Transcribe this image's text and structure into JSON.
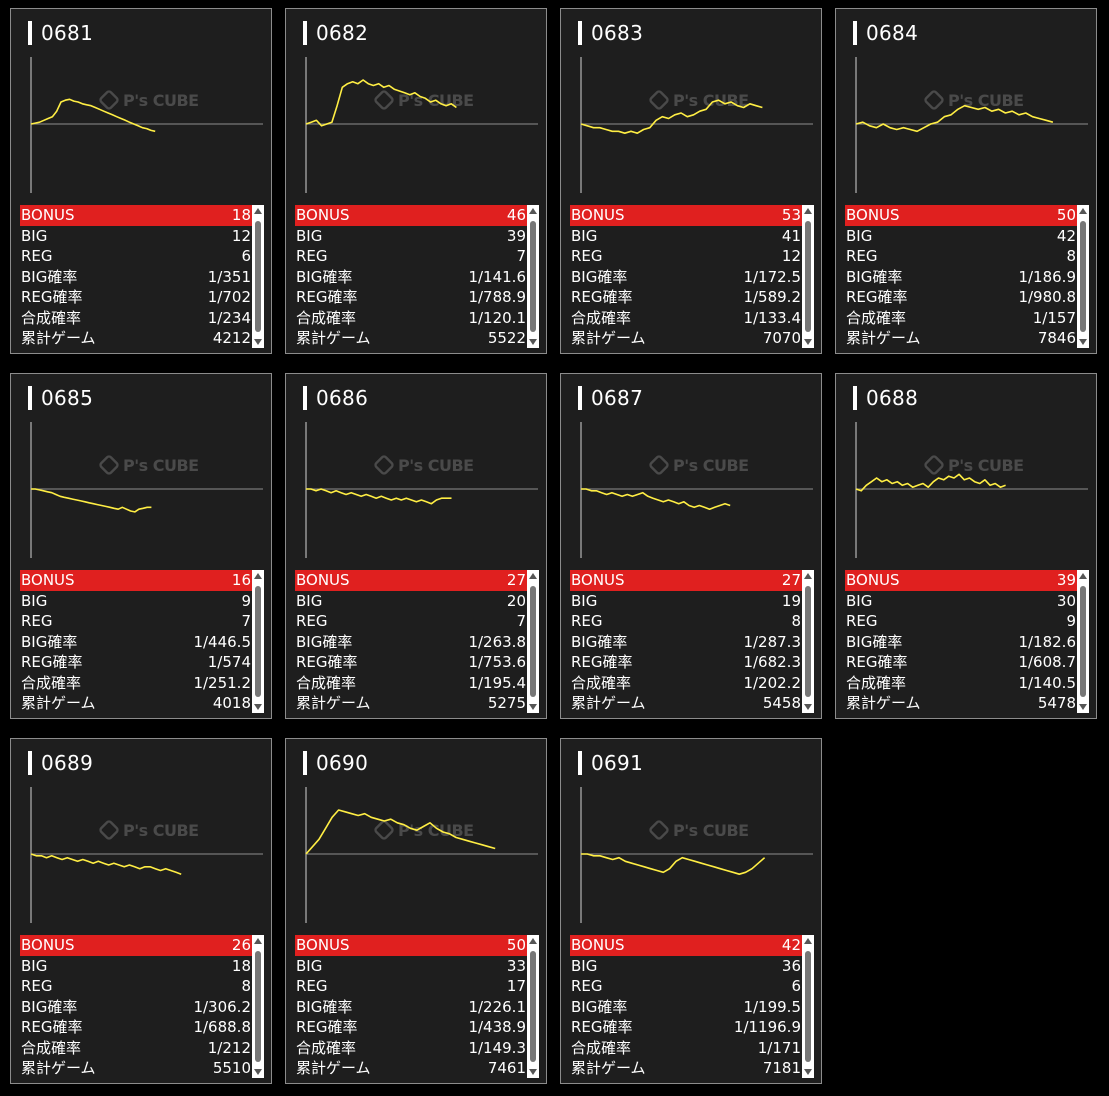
{
  "labels": {
    "bonus": "BONUS",
    "big": "BIG",
    "reg": "REG",
    "big_rate": "BIG確率",
    "reg_rate": "REG確率",
    "combined_rate": "合成確率",
    "total_games": "累計ゲーム"
  },
  "watermark": {
    "brand": "P's CUBE"
  },
  "colors": {
    "background": "#000000",
    "card": "#1e1e1e",
    "bonus_row": "#e0201f",
    "graph_line": "#ffee44",
    "axis": "#aaaaaa"
  },
  "machines": [
    {
      "id": "0681",
      "bonus": "18",
      "big": "12",
      "reg": "6",
      "big_rate": "1/351",
      "reg_rate": "1/702",
      "combined_rate": "1/234",
      "total_games": "4212",
      "trend": [
        0,
        0.5,
        1,
        2,
        3,
        4,
        7,
        12,
        13,
        13.5,
        12.5,
        12,
        11,
        10.5,
        10,
        9,
        8,
        7,
        6,
        5,
        4,
        3,
        2,
        1,
        0,
        -1,
        -2,
        -2.5,
        -3.5,
        -4
      ]
    },
    {
      "id": "0682",
      "bonus": "46",
      "big": "39",
      "reg": "7",
      "big_rate": "1/141.6",
      "reg_rate": "1/788.9",
      "combined_rate": "1/120.1",
      "total_games": "5522",
      "trend": [
        0,
        1,
        2,
        -1,
        0,
        1,
        10,
        20,
        22,
        23,
        22,
        24,
        22,
        21,
        22,
        20,
        21,
        19,
        18,
        17,
        16,
        17,
        15,
        14,
        12,
        13,
        11,
        10,
        11,
        9
      ]
    },
    {
      "id": "0683",
      "bonus": "53",
      "big": "41",
      "reg": "12",
      "big_rate": "1/172.5",
      "reg_rate": "1/589.2",
      "combined_rate": "1/133.4",
      "total_games": "7070",
      "trend": [
        0,
        -1,
        -2,
        -2,
        -3,
        -4,
        -4,
        -5,
        -4,
        -5,
        -3,
        -2,
        2,
        4,
        3,
        5,
        6,
        4,
        5,
        7,
        8,
        12,
        13,
        11,
        12,
        10,
        9,
        11,
        10,
        9
      ]
    },
    {
      "id": "0684",
      "bonus": "50",
      "big": "42",
      "reg": "8",
      "big_rate": "1/186.9",
      "reg_rate": "1/980.8",
      "combined_rate": "1/157",
      "total_games": "7846",
      "trend": [
        0,
        1,
        -1,
        -2,
        0,
        -2,
        -3,
        -2,
        -3,
        -4,
        -2,
        0,
        1,
        4,
        5,
        8,
        10,
        9,
        8,
        9,
        7,
        8,
        6,
        7,
        5,
        6,
        4,
        3,
        2,
        1
      ]
    },
    {
      "id": "0685",
      "bonus": "16",
      "big": "9",
      "reg": "7",
      "big_rate": "1/446.5",
      "reg_rate": "1/574",
      "combined_rate": "1/251.2",
      "total_games": "4018",
      "trend": [
        0,
        0,
        -0.5,
        -1,
        -1.5,
        -2,
        -3,
        -4,
        -4.5,
        -5,
        -5.5,
        -6,
        -6.5,
        -7,
        -7.5,
        -8,
        -8.5,
        -9,
        -9.5,
        -10,
        -10.5,
        -11,
        -10,
        -11,
        -12,
        -12.5,
        -11,
        -10.5,
        -10,
        -10
      ]
    },
    {
      "id": "0686",
      "bonus": "27",
      "big": "20",
      "reg": "7",
      "big_rate": "1/263.8",
      "reg_rate": "1/753.6",
      "combined_rate": "1/195.4",
      "total_games": "5275",
      "trend": [
        0,
        0,
        -1,
        0,
        -1,
        -2,
        -1,
        -2,
        -3,
        -2,
        -3,
        -4,
        -3,
        -4,
        -5,
        -4,
        -5,
        -6,
        -5,
        -6,
        -5,
        -6,
        -7,
        -6,
        -7,
        -8,
        -6,
        -5,
        -5,
        -5
      ]
    },
    {
      "id": "0687",
      "bonus": "27",
      "big": "19",
      "reg": "8",
      "big_rate": "1/287.3",
      "reg_rate": "1/682.3",
      "combined_rate": "1/202.2",
      "total_games": "5458",
      "trend": [
        0,
        0,
        -1,
        -1,
        -2,
        -3,
        -2,
        -3,
        -4,
        -3,
        -4,
        -3,
        -2,
        -4,
        -5,
        -6,
        -7,
        -6,
        -7,
        -8,
        -7,
        -9,
        -10,
        -9,
        -10,
        -11,
        -10,
        -9,
        -8,
        -9
      ]
    },
    {
      "id": "0688",
      "bonus": "39",
      "big": "30",
      "reg": "9",
      "big_rate": "1/182.6",
      "reg_rate": "1/608.7",
      "combined_rate": "1/140.5",
      "total_games": "5478",
      "trend": [
        0,
        -1,
        2,
        4,
        6,
        4,
        5,
        3,
        4,
        2,
        3,
        1,
        2,
        3,
        1,
        4,
        6,
        5,
        7,
        6,
        8,
        5,
        6,
        4,
        3,
        5,
        2,
        3,
        1,
        2
      ]
    },
    {
      "id": "0689",
      "bonus": "26",
      "big": "18",
      "reg": "8",
      "big_rate": "1/306.2",
      "reg_rate": "1/688.8",
      "combined_rate": "1/212",
      "total_games": "5510",
      "trend": [
        0,
        -1,
        -1,
        -2,
        -1,
        -2,
        -3,
        -2,
        -3,
        -4,
        -3,
        -4,
        -5,
        -4,
        -5,
        -6,
        -5,
        -6,
        -7,
        -6,
        -7,
        -8,
        -7,
        -7,
        -8,
        -9,
        -8,
        -9,
        -10,
        -11
      ]
    },
    {
      "id": "0690",
      "bonus": "50",
      "big": "33",
      "reg": "17",
      "big_rate": "1/226.1",
      "reg_rate": "1/438.9",
      "combined_rate": "1/149.3",
      "total_games": "7461",
      "trend": [
        0,
        4,
        8,
        14,
        20,
        24,
        23,
        22,
        21,
        22,
        20,
        19,
        18,
        19,
        17,
        16,
        14,
        13,
        15,
        17,
        14,
        12,
        11,
        9,
        8,
        7,
        6,
        5,
        4,
        3
      ]
    },
    {
      "id": "0691",
      "bonus": "42",
      "big": "36",
      "reg": "6",
      "big_rate": "1/199.5",
      "reg_rate": "1/1196.9",
      "combined_rate": "1/171",
      "total_games": "7181",
      "trend": [
        0,
        0,
        -1,
        -1,
        -2,
        -3,
        -2,
        -4,
        -5,
        -6,
        -7,
        -8,
        -9,
        -10,
        -8,
        -4,
        -2,
        -3,
        -4,
        -5,
        -6,
        -7,
        -8,
        -9,
        -10,
        -11,
        -10,
        -8,
        -5,
        -2
      ]
    }
  ]
}
